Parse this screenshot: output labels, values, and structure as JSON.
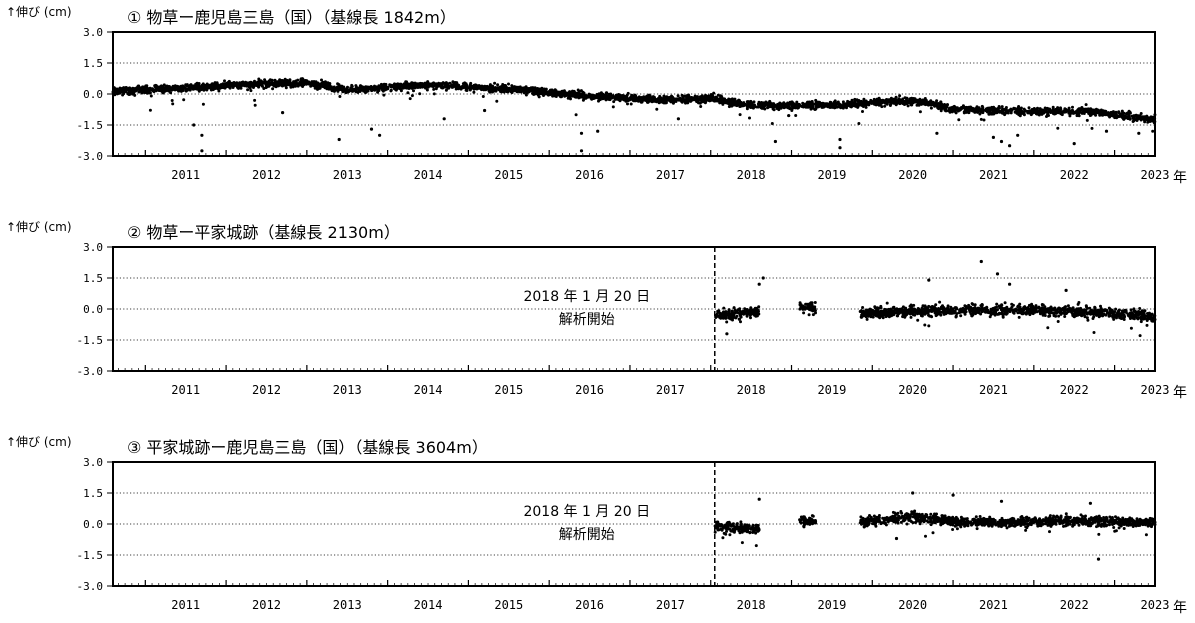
{
  "figure": {
    "ylabel": "↑伸び (cm)",
    "x_unit": "年"
  },
  "chart_data": [
    {
      "type": "scatter",
      "title": "① 物草ー鹿児島三島（国）（基線長 1842m）",
      "ylabel": "↑伸び (cm)",
      "xlabel": "年",
      "xlim": [
        2010.6,
        2023.5
      ],
      "ylim": [
        -3.0,
        3.0
      ],
      "yticks": [
        3.0,
        1.5,
        0.0,
        -1.5,
        -3.0
      ],
      "ytick_labels": [
        "3.0",
        "1.5",
        "0.0",
        "-1.5",
        "-3.0"
      ],
      "xticks": [
        "2011",
        "2012",
        "2013",
        "2014",
        "2015",
        "2016",
        "2017",
        "2018",
        "2019",
        "2020",
        "2021",
        "2022",
        "2023"
      ],
      "grid": "dotted horizontal at ±1.5 and 0.0",
      "data_start": 2010.6,
      "trend": [
        [
          2010.6,
          0.15
        ],
        [
          2011.5,
          0.3
        ],
        [
          2012.5,
          0.5
        ],
        [
          2013.0,
          0.55
        ],
        [
          2013.5,
          0.2
        ],
        [
          2014.5,
          0.45
        ],
        [
          2015.5,
          0.25
        ],
        [
          2016.5,
          -0.1
        ],
        [
          2017.5,
          -0.3
        ],
        [
          2018.0,
          -0.2
        ],
        [
          2018.5,
          -0.55
        ],
        [
          2019.5,
          -0.55
        ],
        [
          2020.3,
          -0.35
        ],
        [
          2020.6,
          -0.35
        ],
        [
          2021.0,
          -0.75
        ],
        [
          2022.0,
          -0.85
        ],
        [
          2022.7,
          -0.8
        ],
        [
          2023.0,
          -1.0
        ],
        [
          2023.5,
          -1.25
        ]
      ],
      "spread": 0.15,
      "outliers": [
        [
          2011.6,
          -1.5
        ],
        [
          2011.7,
          -2.0
        ],
        [
          2011.7,
          -2.75
        ],
        [
          2012.7,
          -0.9
        ],
        [
          2013.4,
          -2.2
        ],
        [
          2013.8,
          -1.7
        ],
        [
          2013.9,
          -2.0
        ],
        [
          2014.7,
          -1.2
        ],
        [
          2015.2,
          -0.8
        ],
        [
          2016.4,
          -1.9
        ],
        [
          2016.4,
          -2.75
        ],
        [
          2016.6,
          -1.8
        ],
        [
          2017.6,
          -1.2
        ],
        [
          2018.8,
          -2.3
        ],
        [
          2019.6,
          -2.6
        ],
        [
          2019.6,
          -2.2
        ],
        [
          2020.8,
          -1.9
        ],
        [
          2021.5,
          -2.1
        ],
        [
          2021.6,
          -2.3
        ],
        [
          2021.7,
          -2.5
        ],
        [
          2021.8,
          -2.0
        ],
        [
          2022.5,
          -2.4
        ],
        [
          2022.9,
          -1.8
        ],
        [
          2023.3,
          -1.9
        ]
      ],
      "annotations": []
    },
    {
      "type": "scatter",
      "title": "② 物草ー平家城跡（基線長 2130m）",
      "ylabel": "↑伸び (cm)",
      "xlabel": "年",
      "xlim": [
        2010.6,
        2023.5
      ],
      "ylim": [
        -3.0,
        3.0
      ],
      "yticks": [
        3.0,
        1.5,
        0.0,
        -1.5,
        -3.0
      ],
      "ytick_labels": [
        "3.0",
        "1.5",
        "0.0",
        "-1.5",
        "-3.0"
      ],
      "xticks": [
        "2011",
        "2012",
        "2013",
        "2014",
        "2015",
        "2016",
        "2017",
        "2018",
        "2019",
        "2020",
        "2021",
        "2022",
        "2023"
      ],
      "grid": "dotted horizontal at ±1.5 and 0.0",
      "data_start": 2018.05,
      "start_marker": 2018.05,
      "segments": [
        [
          2018.05,
          2018.6
        ],
        [
          2019.1,
          2019.3
        ],
        [
          2019.85,
          2023.5
        ]
      ],
      "trend": [
        [
          2018.05,
          -0.3
        ],
        [
          2018.6,
          -0.15
        ],
        [
          2019.1,
          0.05
        ],
        [
          2019.3,
          0.05
        ],
        [
          2019.85,
          -0.2
        ],
        [
          2021.0,
          -0.05
        ],
        [
          2022.0,
          -0.05
        ],
        [
          2023.0,
          -0.2
        ],
        [
          2023.5,
          -0.4
        ]
      ],
      "spread": 0.22,
      "outliers": [
        [
          2018.65,
          1.5
        ],
        [
          2018.6,
          1.2
        ],
        [
          2018.2,
          -1.2
        ],
        [
          2020.7,
          1.4
        ],
        [
          2021.35,
          2.3
        ],
        [
          2021.55,
          1.7
        ],
        [
          2021.7,
          1.2
        ],
        [
          2022.4,
          0.9
        ]
      ],
      "annotations": [
        "2018 年 1 月 20 日",
        "解析開始"
      ]
    },
    {
      "type": "scatter",
      "title": "③ 平家城跡ー鹿児島三島（国）（基線長 3604m）",
      "ylabel": "↑伸び (cm)",
      "xlabel": "年",
      "xlim": [
        2010.6,
        2023.5
      ],
      "ylim": [
        -3.0,
        3.0
      ],
      "yticks": [
        3.0,
        1.5,
        0.0,
        -1.5,
        -3.0
      ],
      "ytick_labels": [
        "3.0",
        "1.5",
        "0.0",
        "-1.5",
        "-3.0"
      ],
      "xticks": [
        "2011",
        "2012",
        "2013",
        "2014",
        "2015",
        "2016",
        "2017",
        "2018",
        "2019",
        "2020",
        "2021",
        "2022",
        "2023"
      ],
      "grid": "dotted horizontal at ±1.5 and 0.0",
      "data_start": 2018.05,
      "start_marker": 2018.05,
      "segments": [
        [
          2018.05,
          2018.6
        ],
        [
          2019.1,
          2019.3
        ],
        [
          2019.85,
          2023.5
        ]
      ],
      "trend": [
        [
          2018.05,
          -0.1
        ],
        [
          2018.6,
          -0.25
        ],
        [
          2019.1,
          0.1
        ],
        [
          2019.3,
          0.1
        ],
        [
          2019.85,
          0.1
        ],
        [
          2020.5,
          0.35
        ],
        [
          2020.9,
          0.15
        ],
        [
          2021.5,
          0.05
        ],
        [
          2022.5,
          0.15
        ],
        [
          2023.5,
          0.05
        ]
      ],
      "spread": 0.2,
      "outliers": [
        [
          2018.6,
          1.2
        ],
        [
          2020.5,
          1.5
        ],
        [
          2020.3,
          -0.7
        ],
        [
          2021.0,
          1.4
        ],
        [
          2021.6,
          1.1
        ],
        [
          2022.8,
          -1.7
        ],
        [
          2022.7,
          1.0
        ]
      ],
      "annotations": [
        "2018 年 1 月 20 日",
        "解析開始"
      ]
    }
  ]
}
